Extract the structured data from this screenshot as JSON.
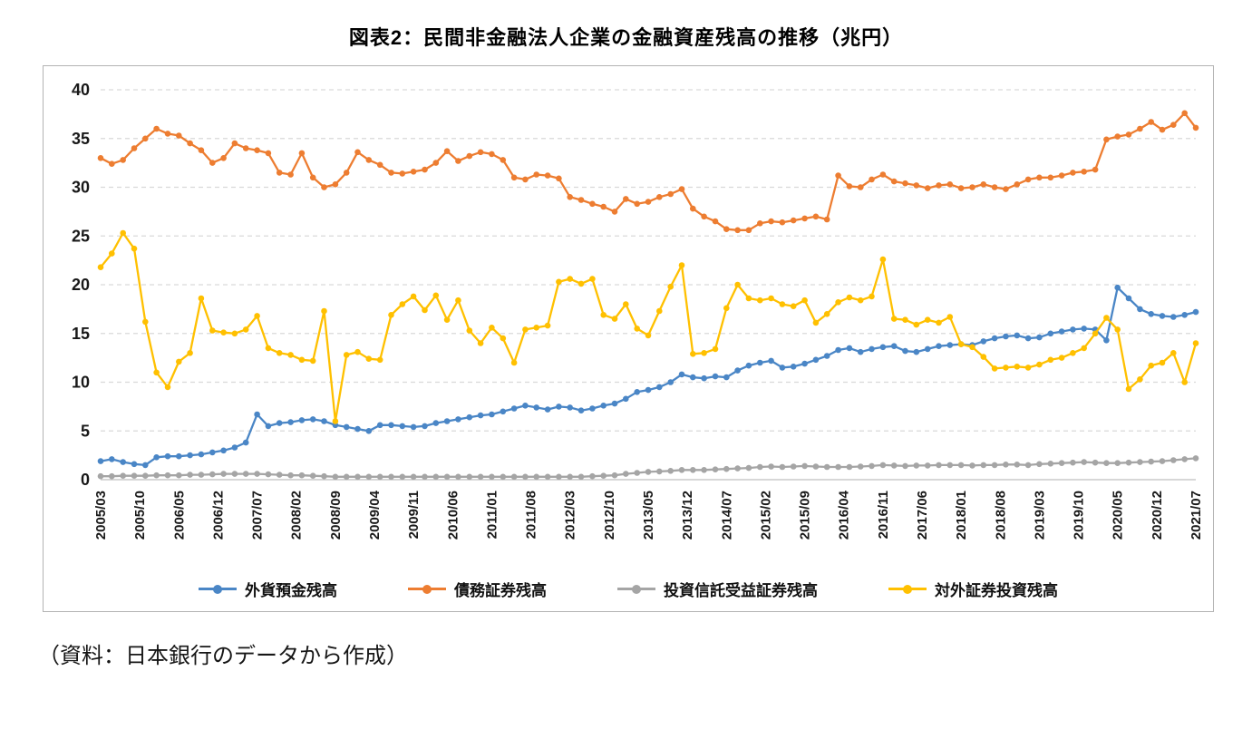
{
  "page": {
    "title": "図表2：民間非金融法人企業の金融資産残高の推移（兆円）",
    "source_note": "（資料：日本銀行のデータから作成）"
  },
  "chart_data": {
    "type": "line",
    "title": "図表2：民間非金融法人企業の金融資産残高の推移（兆円）",
    "xlabel": "",
    "ylabel": "",
    "ylim": [
      0,
      40
    ],
    "ytick_interval": 5,
    "grid": true,
    "grid_style": "dashed-horizontal",
    "legend_position": "bottom",
    "x_start": "2005/03",
    "x_end": "2021/07",
    "x_interval_months": 2,
    "x_tick_labels": [
      "2005/03",
      "2005/10",
      "2006/05",
      "2006/12",
      "2007/07",
      "2008/02",
      "2008/09",
      "2009/04",
      "2009/11",
      "2010/06",
      "2011/01",
      "2011/08",
      "2012/03",
      "2012/10",
      "2013/05",
      "2013/12",
      "2014/07",
      "2015/02",
      "2015/09",
      "2016/04",
      "2016/11",
      "2017/06",
      "2018/01",
      "2018/08",
      "2019/03",
      "2019/10",
      "2020/05",
      "2020/12",
      "2021/07"
    ],
    "x_tick_interval_months": 7,
    "series": [
      {
        "name": "外貨預金残高",
        "color": "#4A86C6",
        "values": [
          1.9,
          2.1,
          1.8,
          1.6,
          1.5,
          2.3,
          2.4,
          2.4,
          2.5,
          2.6,
          2.8,
          3.0,
          3.3,
          3.8,
          6.7,
          5.5,
          5.8,
          5.9,
          6.1,
          6.2,
          6.0,
          5.6,
          5.4,
          5.2,
          5.0,
          5.6,
          5.6,
          5.5,
          5.4,
          5.5,
          5.8,
          6.0,
          6.2,
          6.4,
          6.6,
          6.7,
          7.0,
          7.3,
          7.6,
          7.4,
          7.2,
          7.5,
          7.4,
          7.1,
          7.3,
          7.6,
          7.8,
          8.3,
          9.0,
          9.2,
          9.5,
          10.0,
          10.8,
          10.5,
          10.4,
          10.6,
          10.5,
          11.2,
          11.7,
          12.0,
          12.2,
          11.5,
          11.6,
          11.9,
          12.3,
          12.7,
          13.3,
          13.5,
          13.1,
          13.4,
          13.6,
          13.7,
          13.2,
          13.1,
          13.4,
          13.7,
          13.8,
          13.9,
          13.8,
          14.2,
          14.5,
          14.7,
          14.8,
          14.5,
          14.6,
          15.0,
          15.2,
          15.4,
          15.5,
          15.4,
          14.3,
          19.7,
          18.6,
          17.5,
          17.0,
          16.8,
          16.7,
          16.9,
          17.2
        ]
      },
      {
        "name": "債務証券残高",
        "color": "#ED7D31",
        "values": [
          33.0,
          32.4,
          32.8,
          34.0,
          35.0,
          36.0,
          35.5,
          35.3,
          34.5,
          33.8,
          32.5,
          33.0,
          34.5,
          34.0,
          33.8,
          33.5,
          31.5,
          31.3,
          33.5,
          31.0,
          30.0,
          30.3,
          31.5,
          33.6,
          32.8,
          32.3,
          31.5,
          31.4,
          31.6,
          31.8,
          32.5,
          33.7,
          32.7,
          33.2,
          33.6,
          33.4,
          32.8,
          31.0,
          30.8,
          31.3,
          31.2,
          30.9,
          29.0,
          28.7,
          28.3,
          28.0,
          27.5,
          28.8,
          28.3,
          28.5,
          29.0,
          29.3,
          29.8,
          27.8,
          27.0,
          26.5,
          25.7,
          25.6,
          25.6,
          26.3,
          26.5,
          26.4,
          26.6,
          26.8,
          27.0,
          26.7,
          31.2,
          30.1,
          30.0,
          30.8,
          31.3,
          30.6,
          30.4,
          30.2,
          29.9,
          30.2,
          30.3,
          29.9,
          30.0,
          30.3,
          30.0,
          29.8,
          30.3,
          30.8,
          31.0,
          31.0,
          31.2,
          31.5,
          31.6,
          31.8,
          34.9,
          35.2,
          35.4,
          36.0,
          36.7,
          35.9,
          36.4,
          37.6,
          36.1
        ]
      },
      {
        "name": "投資信託受益証券残高",
        "color": "#A5A5A5",
        "values": [
          0.35,
          0.35,
          0.4,
          0.4,
          0.4,
          0.45,
          0.45,
          0.45,
          0.5,
          0.5,
          0.55,
          0.6,
          0.6,
          0.6,
          0.6,
          0.55,
          0.5,
          0.45,
          0.45,
          0.4,
          0.35,
          0.3,
          0.3,
          0.3,
          0.3,
          0.3,
          0.3,
          0.3,
          0.3,
          0.3,
          0.3,
          0.3,
          0.3,
          0.3,
          0.3,
          0.3,
          0.3,
          0.3,
          0.3,
          0.3,
          0.3,
          0.3,
          0.3,
          0.3,
          0.35,
          0.4,
          0.45,
          0.6,
          0.7,
          0.8,
          0.85,
          0.9,
          1.0,
          1.0,
          1.0,
          1.05,
          1.1,
          1.15,
          1.2,
          1.3,
          1.35,
          1.3,
          1.35,
          1.4,
          1.35,
          1.3,
          1.3,
          1.3,
          1.35,
          1.4,
          1.5,
          1.45,
          1.4,
          1.45,
          1.45,
          1.5,
          1.5,
          1.5,
          1.45,
          1.5,
          1.5,
          1.55,
          1.55,
          1.5,
          1.6,
          1.65,
          1.7,
          1.75,
          1.8,
          1.75,
          1.7,
          1.7,
          1.75,
          1.8,
          1.85,
          1.9,
          2.0,
          2.1,
          2.2
        ]
      },
      {
        "name": "対外証券投資残高",
        "color": "#FFC000",
        "values": [
          21.8,
          23.2,
          25.3,
          23.7,
          16.2,
          11.0,
          9.5,
          12.1,
          13.0,
          18.6,
          15.3,
          15.1,
          15.0,
          15.4,
          16.8,
          13.5,
          13.0,
          12.8,
          12.3,
          12.2,
          17.3,
          6.0,
          12.8,
          13.1,
          12.4,
          12.3,
          16.9,
          18.0,
          18.8,
          17.4,
          18.9,
          16.4,
          18.4,
          15.3,
          14.0,
          15.6,
          14.5,
          12.0,
          15.4,
          15.6,
          15.8,
          20.3,
          20.6,
          20.1,
          20.6,
          16.9,
          16.5,
          18.0,
          15.5,
          14.8,
          17.3,
          19.8,
          22.0,
          12.9,
          13.0,
          13.4,
          17.6,
          20.0,
          18.6,
          18.4,
          18.6,
          18.0,
          17.8,
          18.4,
          16.1,
          17.0,
          18.2,
          18.7,
          18.4,
          18.8,
          22.6,
          16.5,
          16.4,
          15.9,
          16.4,
          16.1,
          16.7,
          13.9,
          13.6,
          12.6,
          11.4,
          11.5,
          11.6,
          11.5,
          11.8,
          12.3,
          12.5,
          13.0,
          13.5,
          15.0,
          16.6,
          15.4,
          9.3,
          10.3,
          11.7,
          12.0,
          13.0,
          10.0,
          14.0
        ]
      }
    ]
  }
}
